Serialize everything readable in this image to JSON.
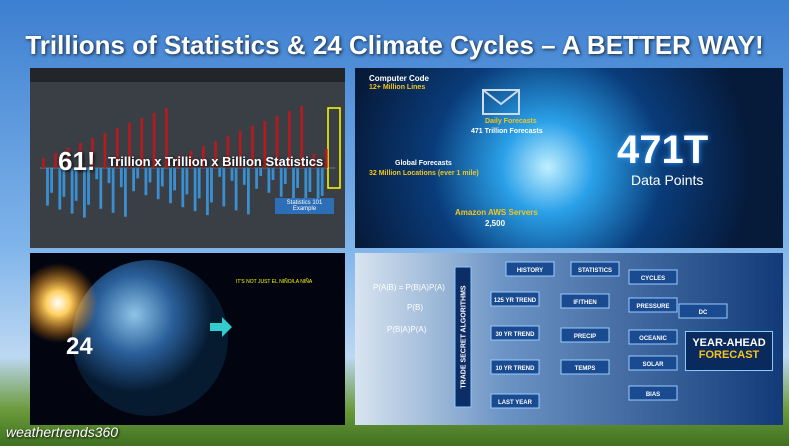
{
  "title": "Trillions of Statistics & 24 Climate Cycles – A BETTER WAY!",
  "panel_statistics": {
    "big": "61!",
    "caption": "Trillion x Trillion x Billion Statistics",
    "box": [
      "Statistics 101",
      "Example"
    ]
  },
  "panel_data": {
    "items": [
      {
        "label": "Computer Code",
        "detail": "12+ Million Lines"
      },
      {
        "label": "Daily Forecasts",
        "detail": "471 Trillion Forecasts"
      },
      {
        "label": "Global Forecasts",
        "detail": "32 Million Locations (ever 1 mile)"
      },
      {
        "label": "Amazon AWS Servers",
        "detail": "2,500"
      }
    ],
    "big": "471T",
    "big_caption": "Data Points"
  },
  "panel_cycles": {
    "big": "24",
    "heading": "IT'S NOT JUST EL NIÑO/LA NIÑA"
  },
  "panel_algorithms": {
    "side": "TRADE SECRET ALGORITHMS",
    "formulas": [
      "P(A|B) = P(B|A)P(A)",
      "P(B)",
      "P(B|A)P(A)"
    ],
    "nodes": [
      "HISTORY",
      "STATISTICS",
      "CYCLES",
      "125 YR TREND",
      "IF/THEN",
      "PRESSURE",
      "30 YR TREND",
      "PRECIP",
      "OCEANIC",
      "10 YR TREND",
      "TEMPS",
      "SOLAR",
      "LAST YEAR",
      "BIAS",
      "DC"
    ],
    "result": [
      "YEAR-AHEAD",
      "FORECAST"
    ]
  },
  "logo": "weathertrends360"
}
